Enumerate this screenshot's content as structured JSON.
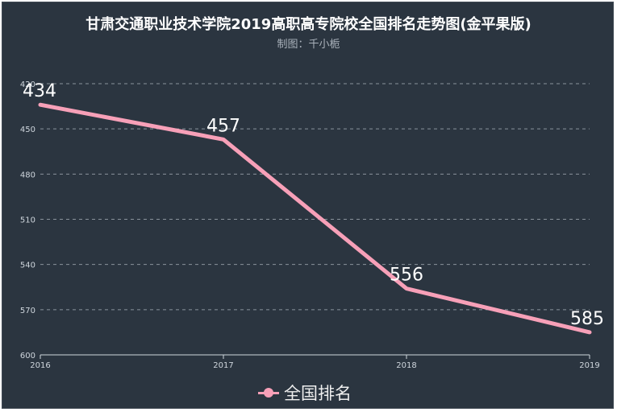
{
  "title": "甘肃交通职业技术学院2019高职高专院校全国排名走势图(金平果版)",
  "subtitle": "制图：千小栀",
  "chart_data": {
    "type": "line",
    "title": "甘肃交通职业技术学院2019高职高专院校全国排名走势图(金平果版)",
    "subtitle": "制图：千小栀",
    "categories": [
      "2016",
      "2017",
      "2018",
      "2019"
    ],
    "series": [
      {
        "name": "全国排名",
        "values": [
          434,
          457,
          556,
          585
        ],
        "color": "#f7a0b8"
      }
    ],
    "ylim": [
      420,
      600
    ],
    "y_inverse": true,
    "yticks": [
      420,
      450,
      480,
      510,
      540,
      570,
      600
    ],
    "grid": true,
    "legend": "bottom-center",
    "colors": {
      "background": "#2b3540",
      "axis": "#cfd6dd",
      "grid": "#8a939c",
      "label": "#ffffff"
    }
  }
}
